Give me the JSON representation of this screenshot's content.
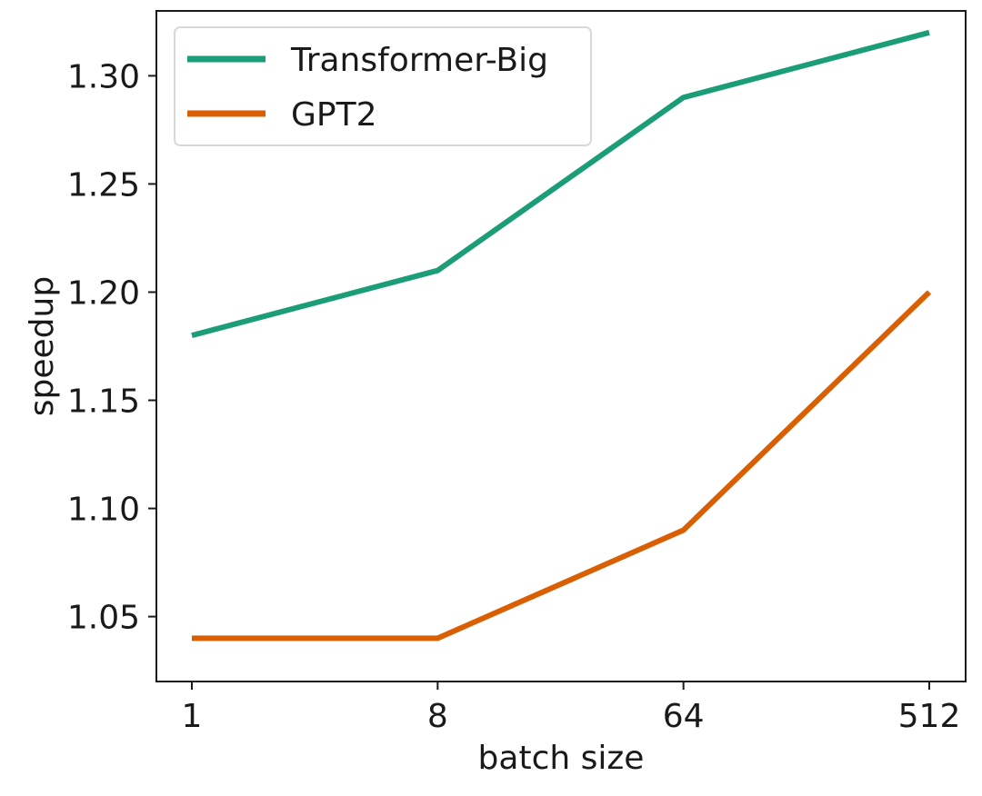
{
  "chart_data": {
    "type": "line",
    "title": "",
    "xlabel": "batch size",
    "ylabel": "speedup",
    "x": [
      "1",
      "8",
      "64",
      "512"
    ],
    "x_scale": "log2",
    "ylim": [
      1.02,
      1.33
    ],
    "yticks": [
      "1.05",
      "1.10",
      "1.15",
      "1.20",
      "1.25",
      "1.30"
    ],
    "grid": false,
    "legend_position": "top-left",
    "series": [
      {
        "name": "Transformer-Big",
        "color": "#1b9e77",
        "values": [
          1.18,
          1.21,
          1.29,
          1.32
        ]
      },
      {
        "name": "GPT2",
        "color": "#d95f02",
        "values": [
          1.04,
          1.04,
          1.09,
          1.2
        ]
      }
    ]
  }
}
